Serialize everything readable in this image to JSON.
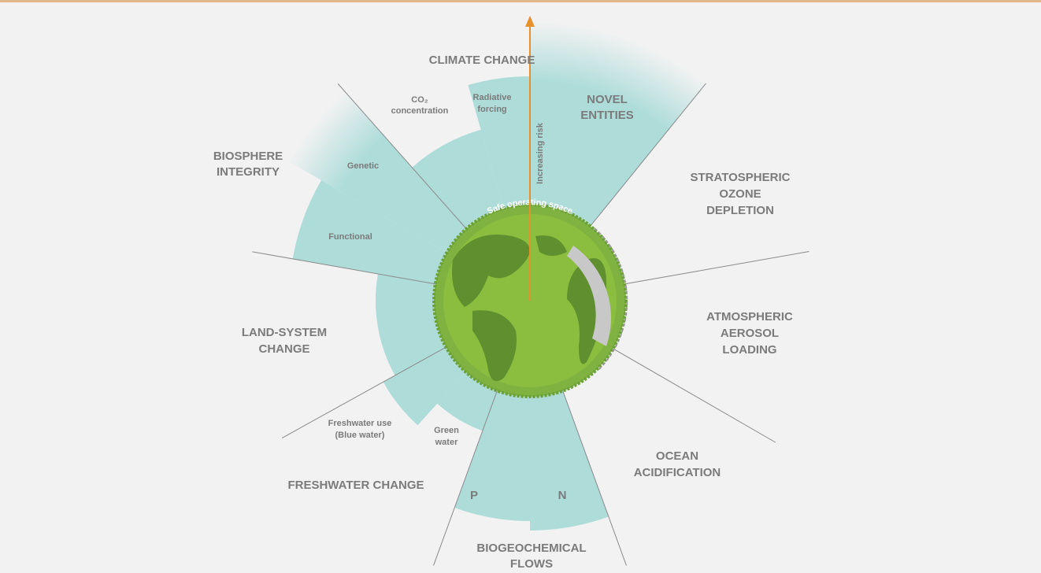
{
  "safe_space": "Safe operating space",
  "arrow_label": "Increasing risk",
  "boundaries": {
    "climate": {
      "title": [
        "CLIMATE CHANGE"
      ],
      "parts": [
        [
          "CO₂",
          "concentration"
        ],
        [
          "Radiative",
          "forcing"
        ]
      ]
    },
    "novel": {
      "title": [
        "NOVEL",
        "ENTITIES"
      ]
    },
    "ozone": {
      "title": [
        "STRATOSPHERIC",
        "OZONE",
        "DEPLETION"
      ]
    },
    "aerosol": {
      "title": [
        "ATMOSPHERIC",
        "AEROSOL",
        "LOADING"
      ]
    },
    "ocean": {
      "title": [
        "OCEAN",
        "ACIDIFICATION"
      ]
    },
    "biogeo": {
      "title": [
        "BIOGEOCHEMICAL",
        "FLOWS"
      ],
      "parts": [
        [
          "P"
        ],
        [
          "N"
        ]
      ]
    },
    "freshwater": {
      "title": [
        "FRESHWATER CHANGE"
      ],
      "parts": [
        [
          "Freshwater use",
          "(Blue water)"
        ],
        [
          "Green",
          "water"
        ]
      ]
    },
    "land": {
      "title": [
        "LAND-SYSTEM",
        "CHANGE"
      ]
    },
    "biosphere": {
      "title": [
        "BIOSPHERE",
        "INTEGRITY"
      ],
      "parts": [
        [
          "Genetic"
        ],
        [
          "Functional"
        ]
      ]
    }
  }
}
